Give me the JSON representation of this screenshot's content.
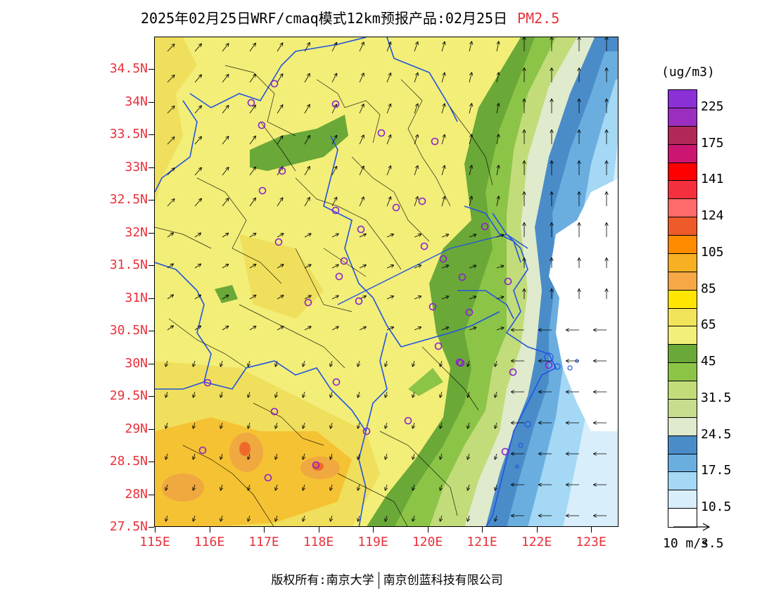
{
  "title": {
    "main": "2025年02月25日WRF/cmaq模式12km预报产品:02月25日",
    "pollutant": "PM2.5"
  },
  "axes": {
    "lat_labels": [
      "34.5N",
      "34N",
      "33.5N",
      "33N",
      "32.5N",
      "32N",
      "31.5N",
      "31N",
      "30.5N",
      "30N",
      "29.5N",
      "29N",
      "28.5N",
      "28N",
      "27.5N"
    ],
    "lon_labels": [
      "115E",
      "116E",
      "117E",
      "118E",
      "119E",
      "120E",
      "121E",
      "122E",
      "123E"
    ]
  },
  "legend": {
    "unit": "(ug/m3)",
    "labels": [
      "225",
      "175",
      "141",
      "124",
      "105",
      "85",
      "65",
      "45",
      "31.5",
      "24.5",
      "17.5",
      "10.5",
      "3.5"
    ],
    "colors": [
      "#8b2fd6",
      "#9b2ebf",
      "#b02858",
      "#cc1570",
      "#ff0000",
      "#f5303e",
      "#ff6a6a",
      "#ef5a2a",
      "#ff8c00",
      "#f7b022",
      "#f5a845",
      "#ffe600",
      "#f2e45a",
      "#f2f07a",
      "#6aa838",
      "#8cc447",
      "#c2dc7a",
      "#c8dc8e",
      "#e0eacc",
      "#4a8cc8",
      "#6aaee0",
      "#a4d8f4",
      "#d8eefa",
      "#ffffff"
    ],
    "wind_reference": "10 m/s"
  },
  "footer": {
    "copyright": "版权所有:南京大学",
    "company": "南京创蓝科技有限公司"
  }
}
